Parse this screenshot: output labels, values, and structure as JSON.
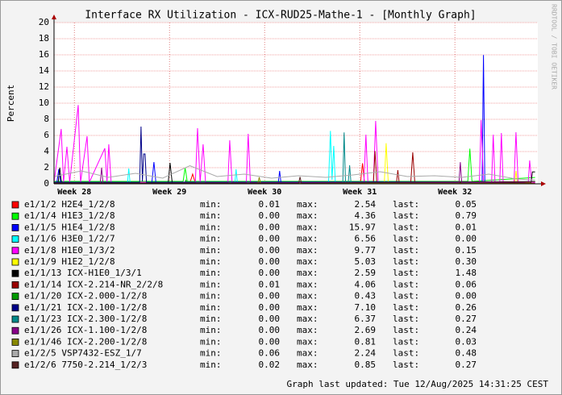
{
  "chart_data": {
    "type": "line",
    "title": "Interface RX Utilization - ICX-RUD25-Mathe-1 - [Monthly Graph]",
    "y_label": "Percent",
    "watermark": "RRDTOOL / TOBI OETIKER",
    "footer": "Graph last updated: Tue 12/Aug/2025 14:31:25 CEST",
    "legend_labels": {
      "min": "min:",
      "max": "max:",
      "last": "last:"
    },
    "xlim": [
      0,
      35.6
    ],
    "xticks": [
      {
        "value": 1.5,
        "label": "Week 28"
      },
      {
        "value": 8.5,
        "label": "Week 29"
      },
      {
        "value": 15.5,
        "label": "Week 30"
      },
      {
        "value": 22.5,
        "label": "Week 31"
      },
      {
        "value": 29.5,
        "label": "Week 32"
      }
    ],
    "ylim": [
      0,
      20
    ],
    "yticks": [
      0,
      2,
      4,
      6,
      8,
      10,
      12,
      14,
      16,
      18,
      20
    ],
    "grid": true,
    "series": [
      {
        "name": "e1/1/2 H2E4_1/2/8",
        "color": "#ff0000",
        "stats": {
          "min": "0.01",
          "max": "2.54",
          "last": "0.05"
        },
        "x": [
          0,
          10,
          10.2,
          10.4,
          22.55,
          22.7,
          22.85,
          35.4
        ],
        "values": [
          0.1,
          0.1,
          1.2,
          0.1,
          0.1,
          2.54,
          0.1,
          0.05
        ]
      },
      {
        "name": "e1/1/4 H1E3_1/2/8",
        "color": "#00ff00",
        "stats": {
          "min": "0.00",
          "max": "4.36",
          "last": "0.79"
        },
        "x": [
          0,
          9.5,
          9.65,
          9.8,
          30.45,
          30.6,
          30.75,
          35.4
        ],
        "values": [
          0.3,
          0.3,
          2.0,
          0.3,
          0.3,
          4.36,
          0.3,
          0.79
        ]
      },
      {
        "name": "e1/1/5 H1E4_1/2/8",
        "color": "#0000ff",
        "stats": {
          "min": "0.00",
          "max": "15.97",
          "last": "0.01"
        },
        "x": [
          0,
          0.2,
          0.35,
          0.5,
          7.2,
          7.35,
          7.5,
          16.5,
          16.6,
          16.7,
          31.5,
          31.6,
          31.7,
          35.4
        ],
        "values": [
          0.1,
          0.1,
          1.8,
          0.1,
          0.1,
          2.7,
          0.1,
          0.1,
          1.6,
          0.1,
          0.1,
          15.97,
          0.1,
          0.01
        ]
      },
      {
        "name": "e1/1/6 H3E0_1/2/7",
        "color": "#00ffff",
        "stats": {
          "min": "0.00",
          "max": "6.56",
          "last": "0.00"
        },
        "x": [
          0,
          5.4,
          5.5,
          5.6,
          13.3,
          13.4,
          13.5,
          20.2,
          20.34,
          20.46,
          20.58,
          20.7,
          35.4
        ],
        "values": [
          0,
          0,
          1.9,
          0,
          0,
          1.8,
          0,
          0,
          6.56,
          0.5,
          4.7,
          0,
          0
        ]
      },
      {
        "name": "e1/1/8 H1E0_1/3/2",
        "color": "#ff00ff",
        "stats": {
          "min": "0.00",
          "max": "9.77",
          "last": "0.15"
        },
        "x": [
          0,
          0.53,
          0.7,
          0.95,
          1.15,
          1.78,
          1.95,
          2.43,
          2.6,
          3.74,
          3.9,
          4.03,
          4.2,
          10.4,
          10.56,
          10.75,
          10.97,
          11.15,
          12.8,
          12.93,
          13.1,
          14.15,
          14.29,
          14.45,
          22.8,
          22.95,
          23.1,
          23.5,
          23.67,
          23.85,
          31.3,
          31.43,
          31.6,
          32.2,
          32.32,
          32.45,
          32.8,
          32.92,
          33.05,
          33.85,
          33.99,
          34.15,
          34.9,
          35.0,
          35.15,
          35.4
        ],
        "values": [
          0.2,
          6.8,
          0.2,
          4.6,
          0.2,
          9.77,
          0.2,
          5.9,
          0.2,
          4.4,
          0.2,
          4.9,
          0.2,
          0.2,
          6.9,
          0.2,
          4.9,
          0.2,
          0.2,
          5.4,
          0.2,
          0.2,
          6.2,
          0.2,
          0.2,
          6.1,
          0.2,
          0.2,
          7.8,
          0.2,
          0.2,
          7.9,
          0.2,
          0.2,
          6.1,
          0.2,
          0.2,
          6.3,
          0.2,
          0.2,
          6.4,
          0.2,
          0.2,
          2.9,
          0.2,
          0.15
        ]
      },
      {
        "name": "e1/1/9 H1E2_1/2/8",
        "color": "#ffff00",
        "stats": {
          "min": "0.00",
          "max": "5.03",
          "last": "0.30"
        },
        "x": [
          0,
          24.3,
          24.44,
          24.6,
          33.9,
          34.0,
          34.1,
          35.4
        ],
        "values": [
          0,
          0,
          5.03,
          0,
          0,
          1.6,
          0,
          0.3
        ]
      },
      {
        "name": "e1/1/13 ICX-H1E0_1/3/1",
        "color": "#000000",
        "stats": {
          "min": "0.00",
          "max": "2.59",
          "last": "1.48"
        },
        "x": [
          0,
          0.3,
          0.42,
          0.55,
          8.4,
          8.54,
          8.7,
          35.1,
          35.2,
          35.4
        ],
        "values": [
          0.1,
          0.1,
          2.0,
          0.1,
          0.1,
          2.59,
          0.1,
          0.1,
          1.48,
          1.48
        ]
      },
      {
        "name": "e1/1/14 ICX-2.214-NR_2/2/8",
        "color": "#990000",
        "stats": {
          "min": "0.01",
          "max": "4.06",
          "last": "0.06"
        },
        "x": [
          0,
          23.5,
          23.62,
          23.75,
          25.2,
          25.3,
          25.4,
          26.25,
          26.4,
          26.55,
          35.4
        ],
        "values": [
          0.1,
          0.1,
          4.06,
          0.1,
          0.1,
          1.7,
          0.1,
          0.1,
          3.9,
          0.1,
          0.06
        ]
      },
      {
        "name": "e1/1/20 ICX-2.000-1/2/8",
        "color": "#009900",
        "stats": {
          "min": "0.00",
          "max": "0.43",
          "last": "0.00"
        },
        "x": [
          0,
          9.6,
          9.7,
          9.8,
          35.4
        ],
        "values": [
          0,
          0,
          0.43,
          0,
          0
        ]
      },
      {
        "name": "e1/1/21 ICX-2.100-1/2/8",
        "color": "#000088",
        "stats": {
          "min": "0.00",
          "max": "7.10",
          "last": "0.26"
        },
        "x": [
          0,
          6.3,
          6.4,
          6.5,
          6.6,
          6.7,
          6.8,
          35.4
        ],
        "values": [
          0.2,
          0.2,
          7.1,
          0.3,
          3.7,
          3.7,
          0.2,
          0.26
        ]
      },
      {
        "name": "e1/1/23 ICX-2.300-1/2/8",
        "color": "#008888",
        "stats": {
          "min": "0.00",
          "max": "6.37",
          "last": "0.27"
        },
        "x": [
          0,
          21.25,
          21.35,
          21.45,
          21.65,
          21.75,
          21.85,
          35.4
        ],
        "values": [
          0.1,
          0.1,
          6.37,
          0.1,
          0.1,
          2.3,
          0.1,
          0.27
        ]
      },
      {
        "name": "e1/1/26 ICX-1.100-1/2/8",
        "color": "#880088",
        "stats": {
          "min": "0.00",
          "max": "2.69",
          "last": "0.24"
        },
        "x": [
          0,
          3.4,
          3.5,
          3.6,
          29.8,
          29.9,
          30.0,
          35.4
        ],
        "values": [
          0.1,
          0.1,
          2.0,
          0.1,
          0.1,
          2.69,
          0.1,
          0.24
        ]
      },
      {
        "name": "e1/1/46 ICX-2.200-1/2/8",
        "color": "#888800",
        "stats": {
          "min": "0.00",
          "max": "0.81",
          "last": "0.03"
        },
        "x": [
          0,
          15,
          15.1,
          15.2,
          35.4
        ],
        "values": [
          0.05,
          0.05,
          0.81,
          0.05,
          0.03
        ]
      },
      {
        "name": "e1/2/5 VSP7432-ESZ_1/7",
        "color": "#aaaaaa",
        "stats": {
          "min": "0.06",
          "max": "2.24",
          "last": "0.48"
        },
        "x": [
          0,
          2,
          4,
          6,
          8,
          10,
          12,
          14,
          16,
          18,
          20,
          22,
          24,
          26,
          28,
          30,
          32,
          34,
          35.4
        ],
        "values": [
          0.9,
          1.6,
          0.8,
          1.3,
          0.7,
          2.24,
          0.9,
          1.2,
          0.7,
          1.0,
          0.8,
          1.1,
          1.5,
          0.9,
          1.0,
          0.8,
          1.2,
          0.6,
          0.48
        ]
      },
      {
        "name": "e1/2/6 7750-2.214_1/2/3",
        "color": "#552222",
        "stats": {
          "min": "0.02",
          "max": "0.85",
          "last": "0.27"
        },
        "x": [
          0,
          18,
          18.1,
          18.2,
          35.4
        ],
        "values": [
          0.1,
          0.1,
          0.85,
          0.1,
          0.27
        ]
      }
    ]
  }
}
